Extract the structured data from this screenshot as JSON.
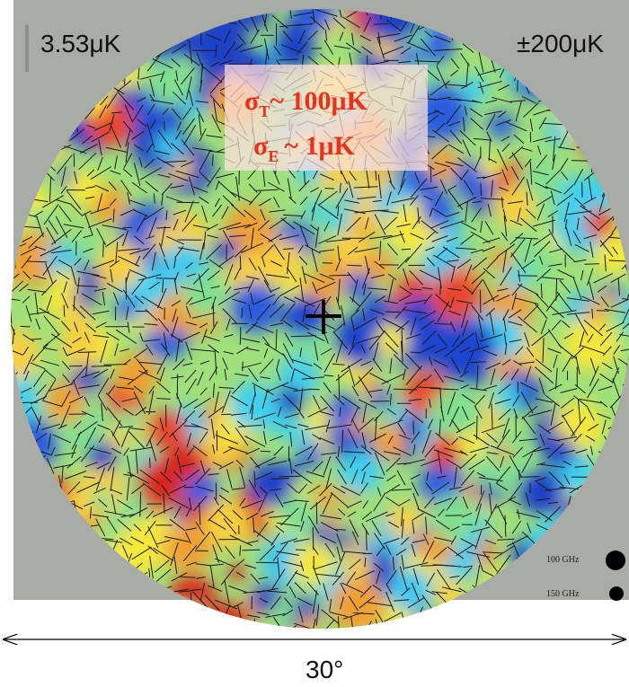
{
  "header": {
    "left_label": "3.53μK",
    "right_label": "±200μK"
  },
  "overlay": {
    "line1": {
      "symbol": "σ",
      "subscript": "T",
      "text": "~ 100μK"
    },
    "line2": {
      "symbol": "σ",
      "subscript": "E",
      "text": "~ 1μK"
    }
  },
  "legend": {
    "items": [
      "100 GHz",
      "150 GHz"
    ]
  },
  "scale": {
    "label": "30°"
  }
}
